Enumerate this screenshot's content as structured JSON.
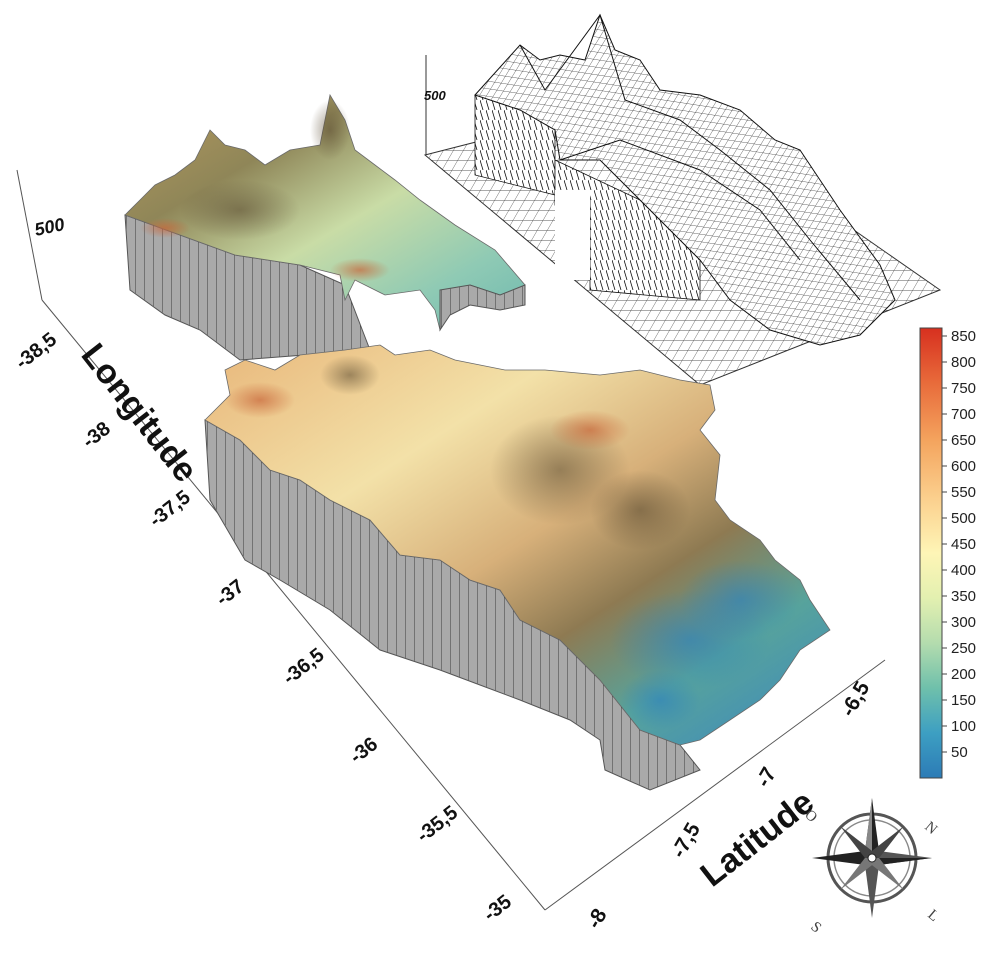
{
  "axes": {
    "longitude_label": "Longitude",
    "latitude_label": "Latitude",
    "longitude_ticks": [
      "-38,5",
      "-38",
      "-37,5",
      "-37",
      "-36,5",
      "-36",
      "-35,5",
      "-35"
    ],
    "latitude_ticks": [
      "-8",
      "-7,5",
      "-7",
      "-6,5"
    ],
    "elevation_tick_main": "500",
    "elevation_tick_inset": "500"
  },
  "colorbar": {
    "labels": [
      "850",
      "800",
      "750",
      "700",
      "650",
      "600",
      "550",
      "500",
      "450",
      "400",
      "350",
      "300",
      "250",
      "200",
      "150",
      "100",
      "50"
    ],
    "colors": [
      "#d7301f",
      "#e86a3a",
      "#f4a45e",
      "#fbd08e",
      "#fef5b6",
      "#e3f0b0",
      "#b4dcae",
      "#6fc0ab",
      "#3d9fc2",
      "#2c7bb6"
    ]
  },
  "compass": {
    "letters": [
      "N",
      "L",
      "S",
      "O"
    ]
  },
  "inset": {
    "style": "wireframe"
  }
}
